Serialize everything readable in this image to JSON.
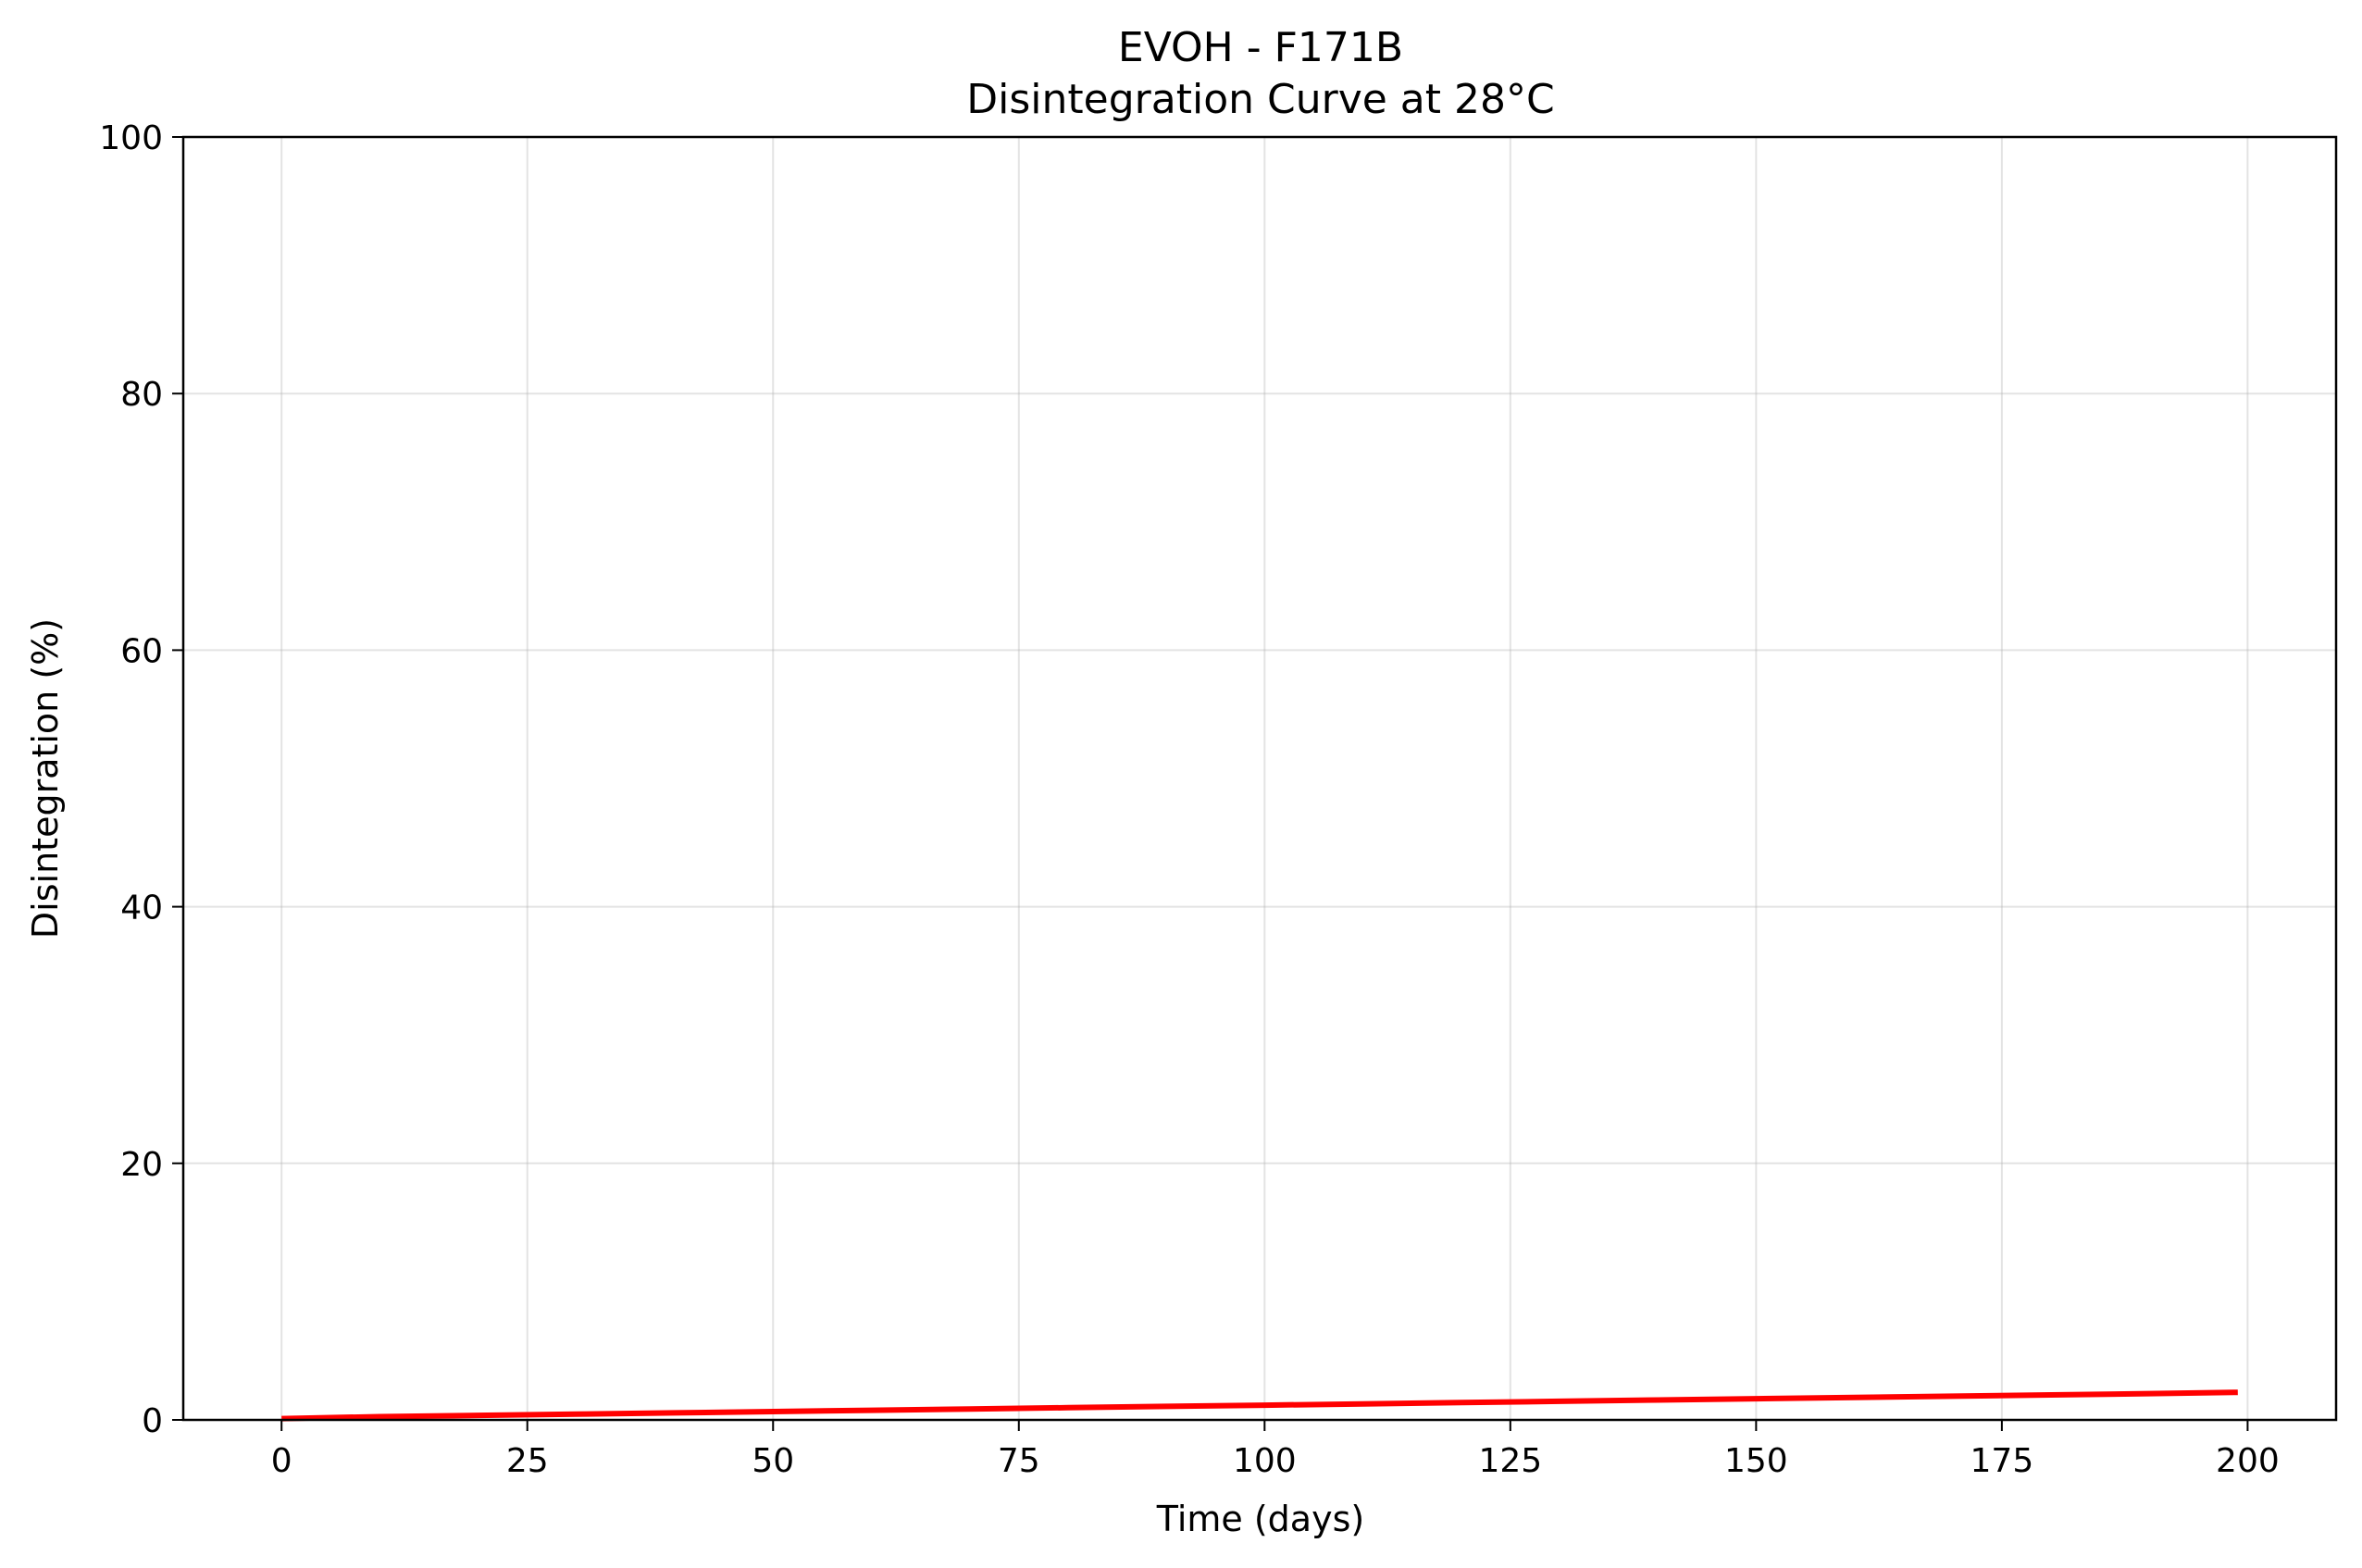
{
  "chart_data": {
    "type": "line",
    "title": "EVOH - F171B",
    "subtitle": "Disintegration Curve at 28°C",
    "xlabel": "Time (days)",
    "ylabel": "Disintegration (%)",
    "xlim": [
      -10,
      209
    ],
    "ylim": [
      0,
      100
    ],
    "xticks": [
      0,
      25,
      50,
      75,
      100,
      125,
      150,
      175,
      200
    ],
    "yticks": [
      0,
      20,
      40,
      60,
      80,
      100
    ],
    "grid": true,
    "colors": {
      "line": "#ff0000"
    },
    "series": [
      {
        "x": [
          0,
          10,
          20,
          30,
          40,
          50,
          60,
          70,
          80,
          90,
          100,
          110,
          120,
          130,
          140,
          150,
          160,
          170,
          180,
          190,
          199
        ],
        "y": [
          0.1,
          0.25,
          0.35,
          0.45,
          0.55,
          0.65,
          0.75,
          0.85,
          0.95,
          1.05,
          1.15,
          1.25,
          1.35,
          1.45,
          1.55,
          1.65,
          1.75,
          1.85,
          1.95,
          2.05,
          2.15
        ]
      }
    ]
  }
}
